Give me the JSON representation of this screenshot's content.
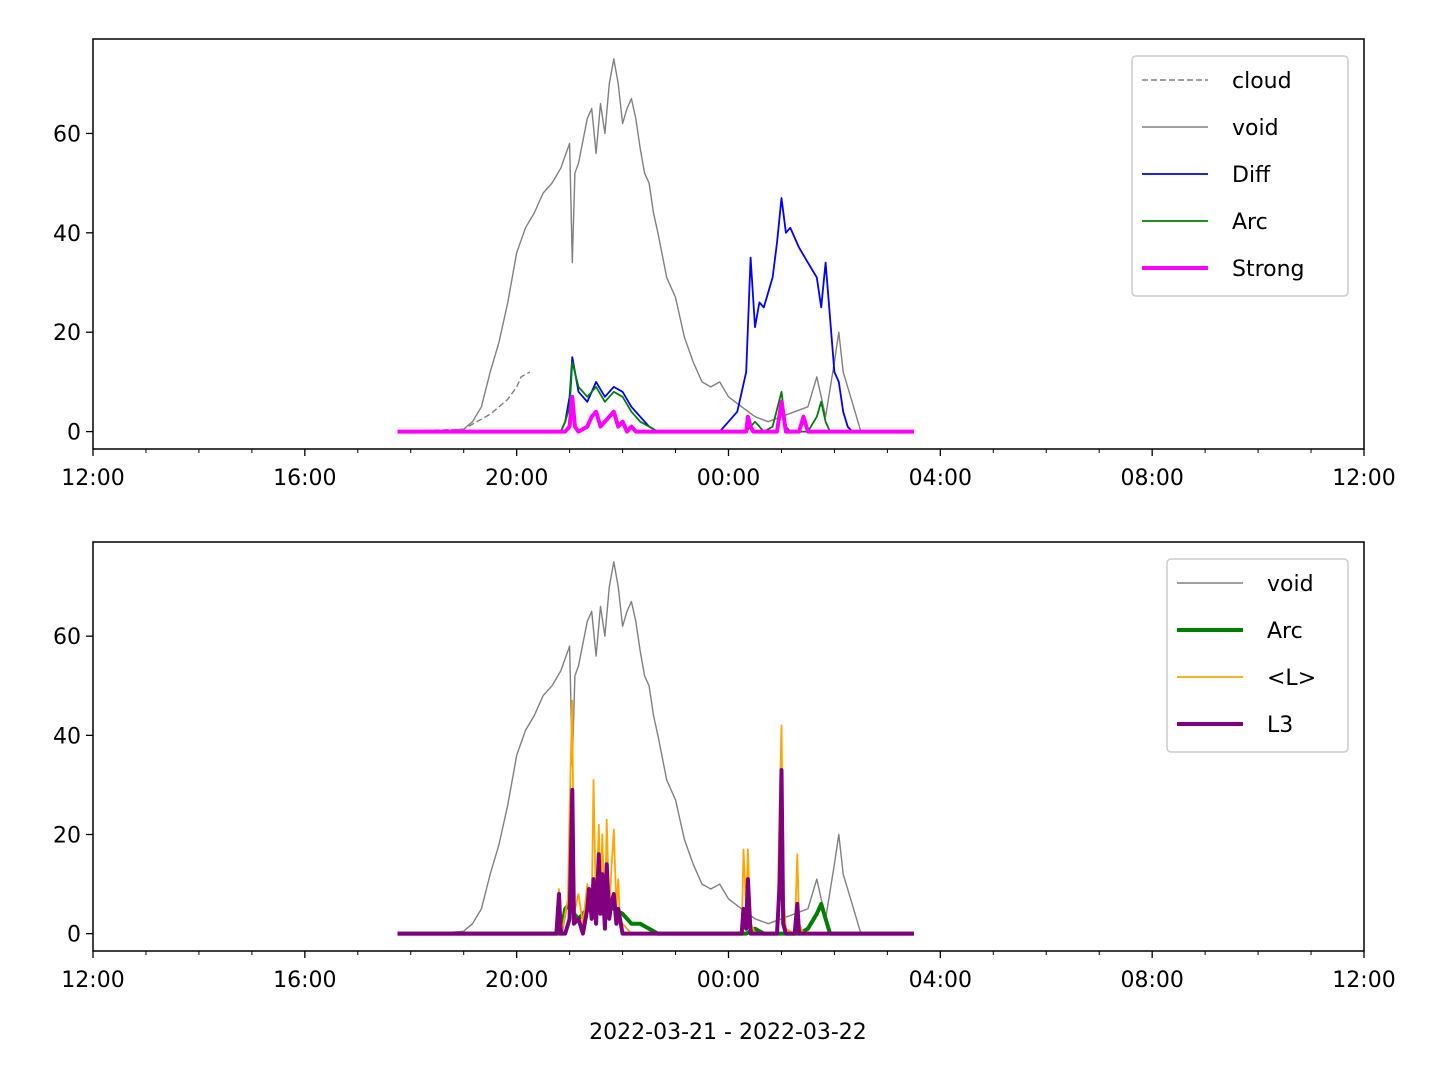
{
  "chart_data": [
    {
      "type": "line",
      "xlim": [
        "2022-03-21 12:00",
        "2022-03-22 12:00"
      ],
      "ylim": [
        -3.5,
        79
      ],
      "x_ticks": [
        "12:00",
        "16:00",
        "20:00",
        "00:00",
        "04:00",
        "08:00",
        "12:00"
      ],
      "x_tick_hours": [
        0,
        4,
        8,
        12,
        16,
        20,
        24
      ],
      "y_ticks": [
        0,
        20,
        40,
        60
      ],
      "y_tick_labels": [
        "0",
        "20",
        "40",
        "60"
      ],
      "xlabel": "",
      "legend_position": "top-right",
      "series": [
        {
          "name": "cloud",
          "color": "#808080",
          "dash": true,
          "width": 1.4,
          "x": [
            "17:45",
            "19:00",
            "19:30",
            "19:40",
            "19:50",
            "20:00",
            "20:05",
            "20:15"
          ],
          "y": [
            0,
            0.5,
            3.5,
            5,
            6.5,
            9,
            11,
            12
          ]
        },
        {
          "name": "void",
          "color": "#808080",
          "dash": false,
          "width": 1.4,
          "x": [
            "17:45",
            "18:30",
            "19:00",
            "19:10",
            "19:20",
            "19:30",
            "19:40",
            "19:50",
            "20:00",
            "20:10",
            "20:20",
            "20:30",
            "20:40",
            "20:50",
            "21:00",
            "21:03",
            "21:06",
            "21:10",
            "21:20",
            "21:25",
            "21:30",
            "21:35",
            "21:40",
            "21:45",
            "21:50",
            "21:55",
            "22:00",
            "22:05",
            "22:10",
            "22:15",
            "22:20",
            "22:25",
            "22:30",
            "22:35",
            "22:40",
            "22:50",
            "23:00",
            "23:10",
            "23:20",
            "23:30",
            "23:40",
            "23:50",
            "00:00",
            "00:15",
            "00:30",
            "00:45",
            "01:00",
            "01:15",
            "01:30",
            "01:40",
            "01:50",
            "02:00",
            "02:05",
            "02:10",
            "02:20",
            "02:30",
            "02:40",
            "03:00",
            "03:30"
          ],
          "y": [
            0,
            0,
            0.5,
            2,
            5,
            12,
            18,
            26,
            36,
            41,
            44,
            48,
            50,
            53,
            58,
            34,
            52,
            54,
            63,
            65,
            56,
            66,
            60,
            70,
            75,
            70,
            62,
            65,
            67,
            63,
            57,
            52,
            50,
            44,
            40,
            31,
            27,
            19,
            14,
            10,
            9,
            10,
            7,
            5,
            3,
            2,
            3,
            4,
            5,
            11,
            3,
            14,
            20,
            12,
            6,
            0,
            0,
            0,
            0
          ]
        },
        {
          "name": "Diff",
          "color": "#0000ff",
          "dash": false,
          "width": 1.8,
          "x": [
            "17:45",
            "20:50",
            "20:55",
            "21:00",
            "21:03",
            "21:10",
            "21:20",
            "21:30",
            "21:40",
            "21:50",
            "22:00",
            "22:10",
            "22:20",
            "22:30",
            "22:40",
            "23:00",
            "23:50",
            "24:00",
            "24:10",
            "24:20",
            "24:25",
            "24:30",
            "24:35",
            "24:40",
            "24:45",
            "24:50",
            "24:55",
            "25:00",
            "25:05",
            "25:10",
            "25:20",
            "25:30",
            "25:40",
            "25:45",
            "25:50",
            "25:55",
            "26:00",
            "26:05",
            "26:10",
            "26:15",
            "26:20",
            "27:30"
          ],
          "y": [
            0,
            0,
            2,
            7,
            15,
            8,
            6,
            10,
            7,
            9,
            8,
            5,
            3,
            1,
            0,
            0,
            0,
            2,
            4,
            12,
            35,
            21,
            26,
            25,
            28,
            31,
            38,
            47,
            40,
            41,
            37,
            34,
            31,
            25,
            34,
            23,
            12,
            10,
            4,
            1,
            0,
            0
          ]
        },
        {
          "name": "Arc",
          "color": "#008000",
          "dash": false,
          "width": 1.8,
          "x": [
            "17:45",
            "20:50",
            "20:55",
            "21:00",
            "21:03",
            "21:10",
            "21:20",
            "21:30",
            "21:40",
            "21:50",
            "22:00",
            "22:10",
            "22:20",
            "22:30",
            "22:40",
            "23:00",
            "24:20",
            "24:30",
            "24:40",
            "24:50",
            "25:00",
            "25:05",
            "25:10",
            "25:20",
            "25:30",
            "25:40",
            "25:45",
            "25:50",
            "25:55",
            "26:00",
            "27:30"
          ],
          "y": [
            0,
            0,
            2,
            5,
            14,
            9,
            7,
            9,
            6,
            8,
            7,
            4,
            2,
            1,
            0,
            0,
            0,
            2,
            0,
            1,
            8,
            1,
            0,
            0,
            0,
            3,
            6,
            2,
            0,
            0,
            0
          ]
        },
        {
          "name": "Strong",
          "color": "#ff00ff",
          "dash": false,
          "width": 4,
          "x": [
            "17:45",
            "20:55",
            "21:00",
            "21:03",
            "21:06",
            "21:10",
            "21:20",
            "21:25",
            "21:30",
            "21:35",
            "21:40",
            "21:50",
            "21:55",
            "22:00",
            "22:05",
            "22:10",
            "22:15",
            "24:20",
            "24:22",
            "24:25",
            "24:28",
            "24:55",
            "25:00",
            "25:05",
            "25:10",
            "25:20",
            "25:25",
            "25:30",
            "27:30"
          ],
          "y": [
            0,
            0,
            1,
            7,
            1,
            0,
            1,
            3,
            4,
            1,
            2,
            4,
            1,
            2,
            0,
            1,
            0,
            0,
            3,
            1,
            0,
            0,
            6,
            0,
            0,
            0,
            3,
            0,
            0
          ]
        }
      ]
    },
    {
      "type": "line",
      "xlim": [
        "2022-03-21 12:00",
        "2022-03-22 12:00"
      ],
      "ylim": [
        -3.5,
        79
      ],
      "x_ticks": [
        "12:00",
        "16:00",
        "20:00",
        "00:00",
        "04:00",
        "08:00",
        "12:00"
      ],
      "x_tick_hours": [
        0,
        4,
        8,
        12,
        16,
        20,
        24
      ],
      "y_ticks": [
        0,
        20,
        40,
        60
      ],
      "y_tick_labels": [
        "0",
        "20",
        "40",
        "60"
      ],
      "xlabel": "2022-03-21 - 2022-03-22",
      "legend_position": "top-right",
      "series": [
        {
          "name": "void",
          "color": "#808080",
          "dash": false,
          "width": 1.4,
          "x": [
            "17:45",
            "18:30",
            "19:00",
            "19:10",
            "19:20",
            "19:30",
            "19:40",
            "19:50",
            "20:00",
            "20:10",
            "20:20",
            "20:30",
            "20:40",
            "20:50",
            "21:00",
            "21:03",
            "21:06",
            "21:10",
            "21:20",
            "21:25",
            "21:30",
            "21:35",
            "21:40",
            "21:45",
            "21:50",
            "21:55",
            "22:00",
            "22:05",
            "22:10",
            "22:15",
            "22:20",
            "22:25",
            "22:30",
            "22:35",
            "22:40",
            "22:50",
            "23:00",
            "23:10",
            "23:20",
            "23:30",
            "23:40",
            "23:50",
            "00:00",
            "00:15",
            "00:30",
            "00:45",
            "01:00",
            "01:15",
            "01:30",
            "01:40",
            "01:50",
            "02:00",
            "02:05",
            "02:10",
            "02:20",
            "02:30",
            "02:40",
            "03:00",
            "03:30"
          ],
          "y": [
            0,
            0,
            0.5,
            2,
            5,
            12,
            18,
            26,
            36,
            41,
            44,
            48,
            50,
            53,
            58,
            34,
            52,
            54,
            63,
            65,
            56,
            66,
            60,
            70,
            75,
            70,
            62,
            65,
            67,
            63,
            57,
            52,
            50,
            44,
            40,
            31,
            27,
            19,
            14,
            10,
            9,
            10,
            7,
            5,
            3,
            2,
            3,
            4,
            5,
            11,
            3,
            14,
            20,
            12,
            6,
            0,
            0,
            0,
            0
          ]
        },
        {
          "name": "Arc",
          "color": "#008000",
          "dash": false,
          "width": 4,
          "x": [
            "17:45",
            "20:50",
            "20:55",
            "21:00",
            "21:05",
            "21:10",
            "21:20",
            "21:30",
            "21:40",
            "21:50",
            "22:00",
            "22:10",
            "22:20",
            "22:30",
            "22:40",
            "23:00",
            "24:20",
            "24:30",
            "24:40",
            "25:20",
            "25:30",
            "25:40",
            "25:45",
            "25:50",
            "25:55",
            "27:30"
          ],
          "y": [
            0,
            0,
            5,
            6,
            4,
            3,
            5,
            4,
            6,
            5,
            4,
            2,
            2,
            1,
            0,
            0,
            0,
            1,
            0,
            0,
            1,
            4,
            6,
            3,
            0,
            0
          ]
        },
        {
          "name": "<L>",
          "color": "#ffa500",
          "dash": false,
          "width": 1.8,
          "x": [
            "17:45",
            "20:45",
            "20:48",
            "20:50",
            "20:52",
            "20:58",
            "21:00",
            "21:03",
            "21:05",
            "21:10",
            "21:15",
            "21:20",
            "21:25",
            "21:27",
            "21:30",
            "21:33",
            "21:35",
            "21:37",
            "21:40",
            "21:42",
            "21:45",
            "21:47",
            "21:50",
            "21:53",
            "21:55",
            "21:57",
            "22:00",
            "22:05",
            "22:10",
            "23:00",
            "24:15",
            "24:17",
            "24:20",
            "24:22",
            "24:25",
            "24:28",
            "24:30",
            "24:35",
            "24:55",
            "24:58",
            "25:00",
            "25:02",
            "25:05",
            "25:15",
            "25:18",
            "25:20",
            "25:25",
            "27:30"
          ],
          "y": [
            0,
            0,
            9,
            2,
            1,
            7,
            25,
            47,
            4,
            8,
            2,
            10,
            5,
            31,
            3,
            22,
            6,
            20,
            2,
            23,
            4,
            12,
            21,
            5,
            11,
            3,
            2,
            1,
            0,
            0,
            0,
            17,
            5,
            17,
            2,
            1,
            0,
            0,
            0,
            26,
            42,
            8,
            1,
            0,
            16,
            2,
            0,
            0
          ]
        },
        {
          "name": "L3",
          "color": "#800080",
          "dash": false,
          "width": 4,
          "x": [
            "17:45",
            "20:45",
            "20:48",
            "20:50",
            "20:55",
            "21:00",
            "21:03",
            "21:05",
            "21:10",
            "21:15",
            "21:20",
            "21:22",
            "21:25",
            "21:27",
            "21:30",
            "21:33",
            "21:35",
            "21:37",
            "21:40",
            "21:42",
            "21:45",
            "21:47",
            "21:50",
            "21:53",
            "21:55",
            "22:00",
            "22:10",
            "24:15",
            "24:17",
            "24:20",
            "24:22",
            "24:25",
            "24:55",
            "24:58",
            "25:00",
            "25:02",
            "25:05",
            "25:15",
            "25:18",
            "25:20",
            "27:30"
          ],
          "y": [
            0,
            0,
            8,
            0,
            0,
            3,
            29,
            2,
            3,
            0,
            5,
            9,
            3,
            11,
            2,
            16,
            4,
            12,
            1,
            14,
            3,
            6,
            8,
            2,
            5,
            0,
            0,
            0,
            5,
            1,
            11,
            0,
            0,
            10,
            33,
            2,
            0,
            0,
            6,
            0,
            0
          ]
        }
      ]
    }
  ]
}
